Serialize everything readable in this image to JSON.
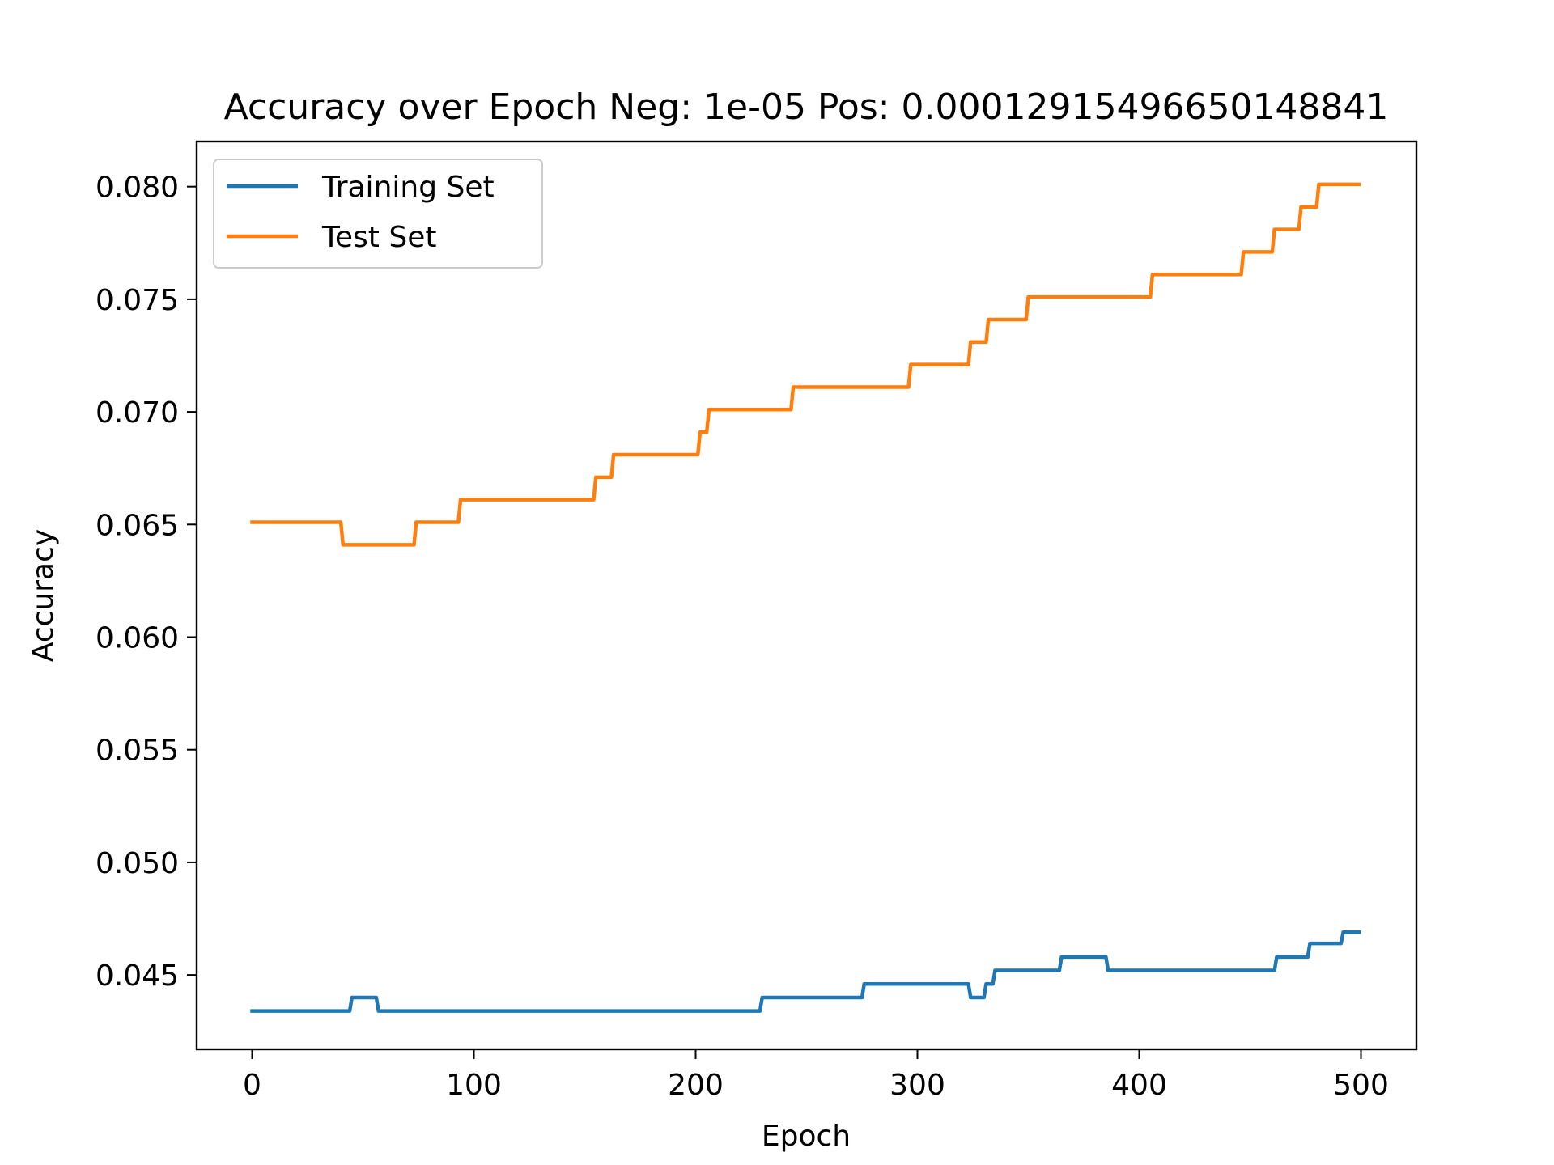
{
  "chart_data": {
    "type": "line",
    "title": "Accuracy over Epoch Neg: 1e-05 Pos: 0.00012915496650148841",
    "xlabel": "Epoch",
    "ylabel": "Accuracy",
    "xlim": [
      -25,
      525
    ],
    "ylim": [
      0.0417,
      0.082
    ],
    "xticks": [
      0,
      100,
      200,
      300,
      400,
      500
    ],
    "yticks": [
      0.045,
      0.05,
      0.055,
      0.06,
      0.065,
      0.07,
      0.075,
      0.08
    ],
    "xtick_labels": [
      "0",
      "100",
      "200",
      "300",
      "400",
      "500"
    ],
    "ytick_labels": [
      "0.045",
      "0.050",
      "0.055",
      "0.060",
      "0.065",
      "0.070",
      "0.075",
      "0.080"
    ],
    "grid": false,
    "legend_position": "top-left",
    "series": [
      {
        "name": "Training Set",
        "color": "#1f77b4",
        "points": [
          [
            0,
            0.0434
          ],
          [
            44,
            0.0434
          ],
          [
            45,
            0.044
          ],
          [
            56,
            0.044
          ],
          [
            57,
            0.0434
          ],
          [
            229,
            0.0434
          ],
          [
            230,
            0.044
          ],
          [
            275,
            0.044
          ],
          [
            276,
            0.0446
          ],
          [
            323,
            0.0446
          ],
          [
            324,
            0.044
          ],
          [
            330,
            0.044
          ],
          [
            331,
            0.0446
          ],
          [
            334,
            0.0446
          ],
          [
            335,
            0.0452
          ],
          [
            364,
            0.0452
          ],
          [
            365,
            0.0458
          ],
          [
            385,
            0.0458
          ],
          [
            386,
            0.0452
          ],
          [
            461,
            0.0452
          ],
          [
            462,
            0.0458
          ],
          [
            476,
            0.0458
          ],
          [
            477,
            0.0464
          ],
          [
            491,
            0.0464
          ],
          [
            492,
            0.0469
          ],
          [
            499,
            0.0469
          ]
        ]
      },
      {
        "name": "Test Set",
        "color": "#ff7f0e",
        "points": [
          [
            0,
            0.0651
          ],
          [
            40,
            0.0651
          ],
          [
            41,
            0.0641
          ],
          [
            73,
            0.0641
          ],
          [
            74,
            0.0651
          ],
          [
            93,
            0.0651
          ],
          [
            94,
            0.0661
          ],
          [
            154,
            0.0661
          ],
          [
            155,
            0.0671
          ],
          [
            162,
            0.0671
          ],
          [
            163,
            0.0681
          ],
          [
            201,
            0.0681
          ],
          [
            202,
            0.0691
          ],
          [
            205,
            0.0691
          ],
          [
            206,
            0.0701
          ],
          [
            243,
            0.0701
          ],
          [
            244,
            0.0711
          ],
          [
            296,
            0.0711
          ],
          [
            297,
            0.0721
          ],
          [
            323,
            0.0721
          ],
          [
            324,
            0.0731
          ],
          [
            331,
            0.0731
          ],
          [
            332,
            0.0741
          ],
          [
            349,
            0.0741
          ],
          [
            350,
            0.0751
          ],
          [
            405,
            0.0751
          ],
          [
            406,
            0.0761
          ],
          [
            446,
            0.0761
          ],
          [
            447,
            0.0771
          ],
          [
            460,
            0.0771
          ],
          [
            461,
            0.0781
          ],
          [
            472,
            0.0781
          ],
          [
            473,
            0.0791
          ],
          [
            480,
            0.0791
          ],
          [
            481,
            0.0801
          ],
          [
            499,
            0.0801
          ]
        ]
      }
    ]
  }
}
